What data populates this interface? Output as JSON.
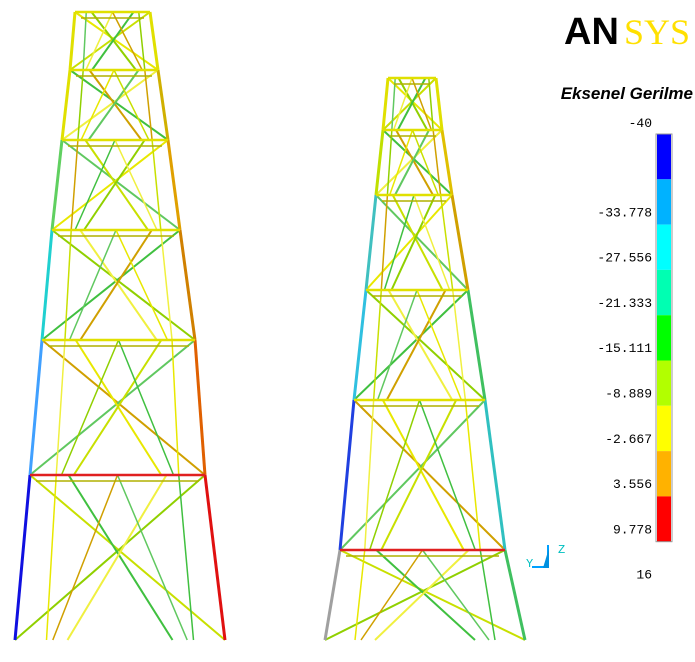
{
  "logo": {
    "left": "AN",
    "right": "SYS"
  },
  "legend": {
    "title": "Eksenel Gerilme",
    "labels": [
      "-40",
      "-33.778",
      "-27.556",
      "-21.333",
      "-15.111",
      "-8.889",
      "-2.667",
      "3.556",
      "9.778",
      "16"
    ],
    "colors": [
      "#0000ff",
      "#00b2ff",
      "#00ffff",
      "#00ffb2",
      "#00ff00",
      "#b2ff00",
      "#ffff00",
      "#ffb200",
      "#ff0000"
    ]
  },
  "triad": {
    "z": "Z",
    "y": "Y"
  }
}
